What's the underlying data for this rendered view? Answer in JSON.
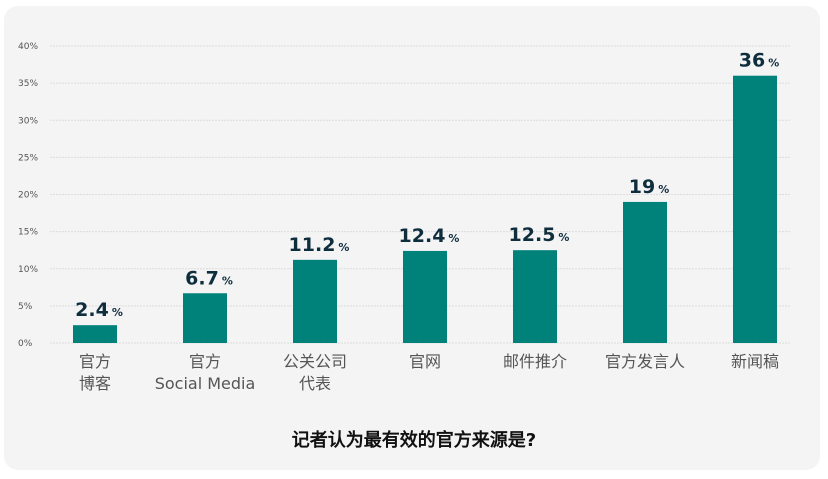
{
  "chart_data": {
    "type": "bar",
    "title": "记者认为最有效的官方来源是?",
    "categories": [
      [
        "官方",
        "博客"
      ],
      [
        "官方",
        "Social Media"
      ],
      [
        "公关公司",
        "代表"
      ],
      [
        "官网"
      ],
      [
        "邮件推介"
      ],
      [
        "官方发言人"
      ],
      [
        "新闻稿"
      ]
    ],
    "values": [
      2.4,
      6.7,
      11.2,
      12.4,
      12.5,
      19,
      36
    ],
    "data_labels": [
      "2.4",
      "6.7",
      "11.2",
      "12.4",
      "12.5",
      "19",
      "36"
    ],
    "data_label_unit": "%",
    "yticks": [
      "0%",
      "5%",
      "10%",
      "15%",
      "20%",
      "25%",
      "30%",
      "35%",
      "40%"
    ],
    "ylim": [
      0,
      40
    ],
    "grid": true,
    "bar_color": "#00827a",
    "label_color": "#0f2e3d"
  }
}
